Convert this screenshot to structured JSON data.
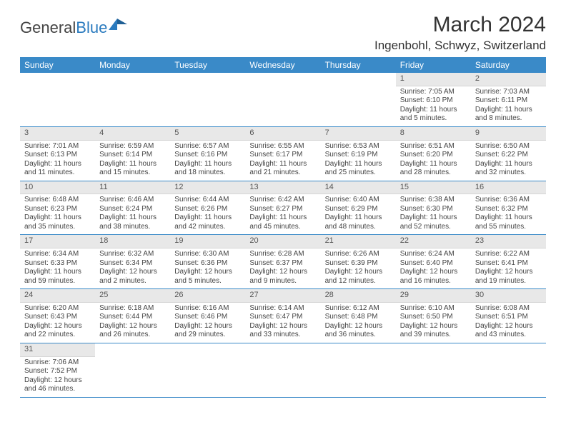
{
  "logo": {
    "text1": "General",
    "text2": "Blue"
  },
  "title": "March 2024",
  "location": "Ingenbohl, Schwyz, Switzerland",
  "colors": {
    "header_bg": "#3a8ac8",
    "header_fg": "#ffffff",
    "daynum_bg": "#e8e8e8",
    "rule": "#3a8ac8",
    "logo_blue": "#2b7bbf"
  },
  "weekdays": [
    "Sunday",
    "Monday",
    "Tuesday",
    "Wednesday",
    "Thursday",
    "Friday",
    "Saturday"
  ],
  "weeks": [
    [
      null,
      null,
      null,
      null,
      null,
      {
        "n": "1",
        "sunrise": "7:05 AM",
        "sunset": "6:10 PM",
        "daylight": "11 hours and 5 minutes."
      },
      {
        "n": "2",
        "sunrise": "7:03 AM",
        "sunset": "6:11 PM",
        "daylight": "11 hours and 8 minutes."
      }
    ],
    [
      {
        "n": "3",
        "sunrise": "7:01 AM",
        "sunset": "6:13 PM",
        "daylight": "11 hours and 11 minutes."
      },
      {
        "n": "4",
        "sunrise": "6:59 AM",
        "sunset": "6:14 PM",
        "daylight": "11 hours and 15 minutes."
      },
      {
        "n": "5",
        "sunrise": "6:57 AM",
        "sunset": "6:16 PM",
        "daylight": "11 hours and 18 minutes."
      },
      {
        "n": "6",
        "sunrise": "6:55 AM",
        "sunset": "6:17 PM",
        "daylight": "11 hours and 21 minutes."
      },
      {
        "n": "7",
        "sunrise": "6:53 AM",
        "sunset": "6:19 PM",
        "daylight": "11 hours and 25 minutes."
      },
      {
        "n": "8",
        "sunrise": "6:51 AM",
        "sunset": "6:20 PM",
        "daylight": "11 hours and 28 minutes."
      },
      {
        "n": "9",
        "sunrise": "6:50 AM",
        "sunset": "6:22 PM",
        "daylight": "11 hours and 32 minutes."
      }
    ],
    [
      {
        "n": "10",
        "sunrise": "6:48 AM",
        "sunset": "6:23 PM",
        "daylight": "11 hours and 35 minutes."
      },
      {
        "n": "11",
        "sunrise": "6:46 AM",
        "sunset": "6:24 PM",
        "daylight": "11 hours and 38 minutes."
      },
      {
        "n": "12",
        "sunrise": "6:44 AM",
        "sunset": "6:26 PM",
        "daylight": "11 hours and 42 minutes."
      },
      {
        "n": "13",
        "sunrise": "6:42 AM",
        "sunset": "6:27 PM",
        "daylight": "11 hours and 45 minutes."
      },
      {
        "n": "14",
        "sunrise": "6:40 AM",
        "sunset": "6:29 PM",
        "daylight": "11 hours and 48 minutes."
      },
      {
        "n": "15",
        "sunrise": "6:38 AM",
        "sunset": "6:30 PM",
        "daylight": "11 hours and 52 minutes."
      },
      {
        "n": "16",
        "sunrise": "6:36 AM",
        "sunset": "6:32 PM",
        "daylight": "11 hours and 55 minutes."
      }
    ],
    [
      {
        "n": "17",
        "sunrise": "6:34 AM",
        "sunset": "6:33 PM",
        "daylight": "11 hours and 59 minutes."
      },
      {
        "n": "18",
        "sunrise": "6:32 AM",
        "sunset": "6:34 PM",
        "daylight": "12 hours and 2 minutes."
      },
      {
        "n": "19",
        "sunrise": "6:30 AM",
        "sunset": "6:36 PM",
        "daylight": "12 hours and 5 minutes."
      },
      {
        "n": "20",
        "sunrise": "6:28 AM",
        "sunset": "6:37 PM",
        "daylight": "12 hours and 9 minutes."
      },
      {
        "n": "21",
        "sunrise": "6:26 AM",
        "sunset": "6:39 PM",
        "daylight": "12 hours and 12 minutes."
      },
      {
        "n": "22",
        "sunrise": "6:24 AM",
        "sunset": "6:40 PM",
        "daylight": "12 hours and 16 minutes."
      },
      {
        "n": "23",
        "sunrise": "6:22 AM",
        "sunset": "6:41 PM",
        "daylight": "12 hours and 19 minutes."
      }
    ],
    [
      {
        "n": "24",
        "sunrise": "6:20 AM",
        "sunset": "6:43 PM",
        "daylight": "12 hours and 22 minutes."
      },
      {
        "n": "25",
        "sunrise": "6:18 AM",
        "sunset": "6:44 PM",
        "daylight": "12 hours and 26 minutes."
      },
      {
        "n": "26",
        "sunrise": "6:16 AM",
        "sunset": "6:46 PM",
        "daylight": "12 hours and 29 minutes."
      },
      {
        "n": "27",
        "sunrise": "6:14 AM",
        "sunset": "6:47 PM",
        "daylight": "12 hours and 33 minutes."
      },
      {
        "n": "28",
        "sunrise": "6:12 AM",
        "sunset": "6:48 PM",
        "daylight": "12 hours and 36 minutes."
      },
      {
        "n": "29",
        "sunrise": "6:10 AM",
        "sunset": "6:50 PM",
        "daylight": "12 hours and 39 minutes."
      },
      {
        "n": "30",
        "sunrise": "6:08 AM",
        "sunset": "6:51 PM",
        "daylight": "12 hours and 43 minutes."
      }
    ],
    [
      {
        "n": "31",
        "sunrise": "7:06 AM",
        "sunset": "7:52 PM",
        "daylight": "12 hours and 46 minutes."
      },
      null,
      null,
      null,
      null,
      null,
      null
    ]
  ],
  "labels": {
    "sunrise": "Sunrise: ",
    "sunset": "Sunset: ",
    "daylight": "Daylight: "
  }
}
